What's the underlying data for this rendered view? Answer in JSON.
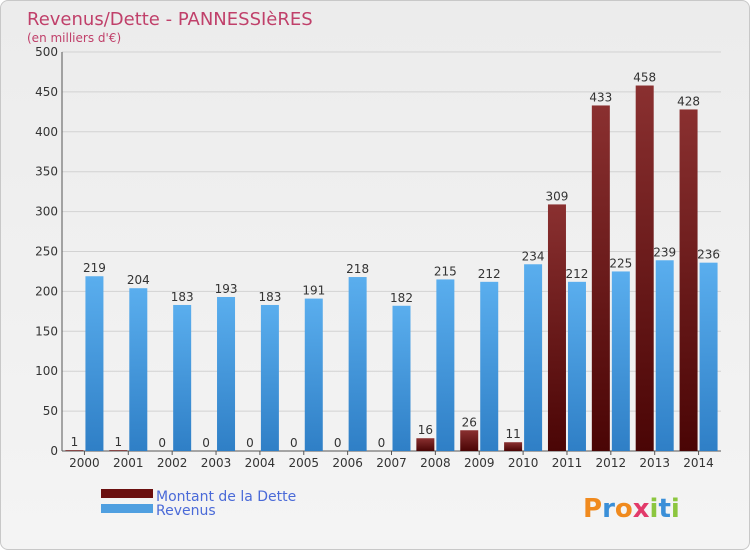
{
  "chart_data": {
    "type": "bar",
    "title": "Revenus/Dette - PANNESSIèRES",
    "subtitle": "(en milliers d'€)",
    "categories": [
      "2000",
      "2001",
      "2002",
      "2003",
      "2004",
      "2005",
      "2006",
      "2007",
      "2008",
      "2009",
      "2010",
      "2011",
      "2012",
      "2013",
      "2014"
    ],
    "series": [
      {
        "name": "Montant de la Dette",
        "color": "#6b0f0f",
        "values": [
          1,
          1,
          0,
          0,
          0,
          0,
          0,
          0,
          16,
          26,
          11,
          309,
          433,
          458,
          428
        ]
      },
      {
        "name": "Revenus",
        "color": "#4f9fe0",
        "values": [
          219,
          204,
          183,
          193,
          183,
          191,
          218,
          182,
          215,
          212,
          234,
          212,
          225,
          239,
          236
        ]
      }
    ],
    "ylim": [
      0,
      500
    ],
    "yticks": [
      0,
      50,
      100,
      150,
      200,
      250,
      300,
      350,
      400,
      450,
      500
    ],
    "grid": true,
    "legend_position": "bottom-left"
  },
  "brand": {
    "text": "Proxiti",
    "letters": [
      "P",
      "r",
      "o",
      "x",
      "i",
      "t",
      "i"
    ],
    "colors": [
      "#f08a1e",
      "#3a8fd8",
      "#f08a1e",
      "#e23a6a",
      "#8cc63f",
      "#3a8fd8",
      "#8cc63f"
    ]
  }
}
